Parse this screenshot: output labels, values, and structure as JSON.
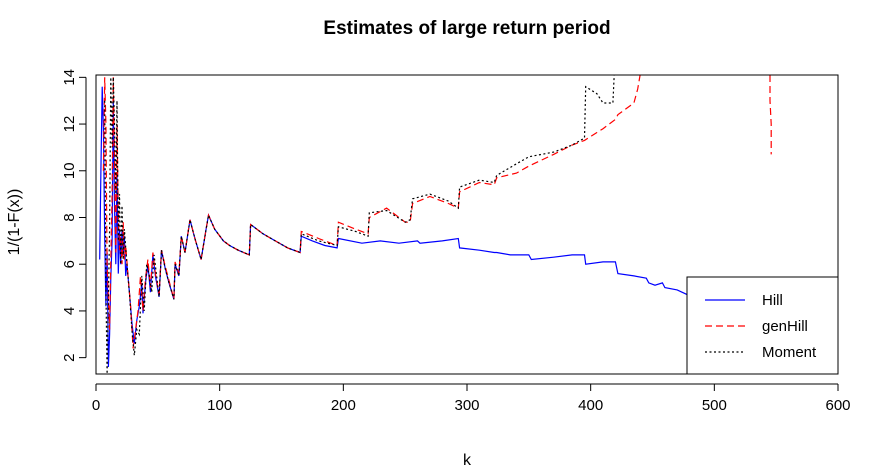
{
  "chart_data": {
    "type": "line",
    "title": "Estimates of large return period",
    "xlabel": "k",
    "ylabel": "1/(1-F(x))",
    "xlim": [
      0,
      600
    ],
    "ylim": [
      1.3,
      14.1
    ],
    "xticks": [
      {
        "value": 0,
        "label": "0"
      },
      {
        "value": 100,
        "label": "100"
      },
      {
        "value": 200,
        "label": "200"
      },
      {
        "value": 300,
        "label": "300"
      },
      {
        "value": 400,
        "label": "400"
      },
      {
        "value": 500,
        "label": "500"
      },
      {
        "value": 600,
        "label": "600"
      }
    ],
    "yticks": [
      {
        "value": 2,
        "label": "2"
      },
      {
        "value": 4,
        "label": "4"
      },
      {
        "value": 6,
        "label": "6"
      },
      {
        "value": 8,
        "label": "8"
      },
      {
        "value": 10,
        "label": "10"
      },
      {
        "value": 12,
        "label": "12"
      },
      {
        "value": 14,
        "label": "14"
      }
    ],
    "grid": false,
    "legend_position": "bottom-right",
    "series": [
      {
        "name": "Hill",
        "color": "#0000ff",
        "dash": "solid",
        "points": [
          [
            3,
            6.2
          ],
          [
            4,
            10
          ],
          [
            5,
            13.6
          ],
          [
            6,
            11.8
          ],
          [
            7,
            7.2
          ],
          [
            8,
            4.2
          ],
          [
            9,
            6.5
          ],
          [
            10,
            1.6
          ],
          [
            11,
            3
          ],
          [
            12,
            5.4
          ],
          [
            13,
            7
          ],
          [
            14,
            13
          ],
          [
            15,
            8.5
          ],
          [
            16,
            6
          ],
          [
            17,
            9.8
          ],
          [
            18,
            5.6
          ],
          [
            19,
            7.5
          ],
          [
            20,
            6
          ],
          [
            21,
            7.4
          ],
          [
            22,
            6.4
          ],
          [
            23,
            7.2
          ],
          [
            24,
            5.5
          ],
          [
            25,
            6
          ],
          [
            27,
            4.8
          ],
          [
            29,
            3.5
          ],
          [
            31,
            2.6
          ],
          [
            33,
            3.6
          ],
          [
            35,
            4.2
          ],
          [
            37,
            5.2
          ],
          [
            38,
            3.9
          ],
          [
            40,
            5.2
          ],
          [
            42,
            6
          ],
          [
            44,
            4.8
          ],
          [
            46,
            6.4
          ],
          [
            48,
            5.5
          ],
          [
            51,
            4.6
          ],
          [
            53,
            6.6
          ],
          [
            56,
            5.8
          ],
          [
            59,
            5.2
          ],
          [
            63,
            4.5
          ],
          [
            64,
            6
          ],
          [
            67,
            5.5
          ],
          [
            69,
            7.2
          ],
          [
            72,
            6.5
          ],
          [
            76,
            7.9
          ],
          [
            80,
            7.1
          ],
          [
            85,
            6.2
          ],
          [
            89,
            7.5
          ],
          [
            91,
            8.1
          ],
          [
            96,
            7.5
          ],
          [
            103,
            7
          ],
          [
            108,
            6.8
          ],
          [
            115,
            6.6
          ],
          [
            124,
            6.4
          ],
          [
            125,
            7.7
          ],
          [
            135,
            7.3
          ],
          [
            145,
            7
          ],
          [
            155,
            6.7
          ],
          [
            165,
            6.5
          ],
          [
            166,
            7.2
          ],
          [
            175,
            7
          ],
          [
            185,
            6.8
          ],
          [
            195,
            6.7
          ],
          [
            196,
            7.1
          ],
          [
            215,
            6.9
          ],
          [
            230,
            7
          ],
          [
            245,
            6.9
          ],
          [
            260,
            7
          ],
          [
            262,
            6.9
          ],
          [
            280,
            7
          ],
          [
            293,
            7.1
          ],
          [
            294,
            6.7
          ],
          [
            310,
            6.6
          ],
          [
            322,
            6.5
          ],
          [
            324,
            6.5
          ],
          [
            335,
            6.4
          ],
          [
            350,
            6.4
          ],
          [
            352,
            6.2
          ],
          [
            370,
            6.3
          ],
          [
            385,
            6.4
          ],
          [
            395,
            6.4
          ],
          [
            396,
            6
          ],
          [
            410,
            6.1
          ],
          [
            420,
            6.1
          ],
          [
            422,
            5.6
          ],
          [
            435,
            5.5
          ],
          [
            445,
            5.4
          ],
          [
            447,
            5.2
          ],
          [
            452,
            5.1
          ],
          [
            458,
            5.2
          ],
          [
            460,
            5
          ],
          [
            470,
            4.9
          ],
          [
            478,
            4.7
          ],
          [
            485,
            4.8
          ],
          [
            490,
            4.7
          ],
          [
            500,
            4.7
          ]
        ]
      },
      {
        "name": "genHill",
        "color": "#ff0000",
        "dash": "dashed",
        "points": [
          [
            6,
            10
          ],
          [
            7,
            14
          ],
          [
            8,
            12
          ],
          [
            9,
            6
          ],
          [
            10,
            4.5
          ],
          [
            11,
            3.2
          ],
          [
            12,
            6.2
          ],
          [
            13,
            9
          ],
          [
            14,
            14
          ],
          [
            15,
            10.5
          ],
          [
            16,
            6.5
          ],
          [
            17,
            12
          ],
          [
            18,
            8
          ],
          [
            19,
            6.6
          ],
          [
            20,
            7.2
          ],
          [
            21,
            6
          ],
          [
            22,
            7.8
          ],
          [
            23,
            6.2
          ],
          [
            24,
            6.8
          ],
          [
            26,
            5.4
          ],
          [
            28,
            4.2
          ],
          [
            30,
            2.4
          ],
          [
            32,
            3.2
          ],
          [
            34,
            4
          ],
          [
            36,
            5.5
          ],
          [
            38,
            4
          ],
          [
            40,
            5.4
          ],
          [
            42,
            6.2
          ],
          [
            44,
            5
          ],
          [
            46,
            6.5
          ],
          [
            48,
            5.6
          ],
          [
            51,
            4.7
          ],
          [
            53,
            6.6
          ],
          [
            56,
            5.9
          ],
          [
            59,
            5.3
          ],
          [
            63,
            4.5
          ],
          [
            64,
            6.1
          ],
          [
            67,
            5.6
          ],
          [
            69,
            7.2
          ],
          [
            72,
            6.5
          ],
          [
            76,
            7.9
          ],
          [
            80,
            7.1
          ],
          [
            85,
            6.2
          ],
          [
            89,
            7.5
          ],
          [
            91,
            8.1
          ],
          [
            96,
            7.5
          ],
          [
            103,
            7
          ],
          [
            108,
            6.8
          ],
          [
            115,
            6.6
          ],
          [
            124,
            6.4
          ],
          [
            125,
            7.7
          ],
          [
            135,
            7.3
          ],
          [
            145,
            7
          ],
          [
            155,
            6.7
          ],
          [
            165,
            6.5
          ],
          [
            166,
            7.4
          ],
          [
            180,
            7.1
          ],
          [
            195,
            6.8
          ],
          [
            196,
            7.8
          ],
          [
            210,
            7.5
          ],
          [
            220,
            7.3
          ],
          [
            221,
            8
          ],
          [
            235,
            8.4
          ],
          [
            250,
            7.8
          ],
          [
            254,
            7.8
          ],
          [
            256,
            8.6
          ],
          [
            270,
            8.9
          ],
          [
            285,
            8.6
          ],
          [
            293,
            8.4
          ],
          [
            294,
            9.1
          ],
          [
            310,
            9.5
          ],
          [
            322,
            9.4
          ],
          [
            324,
            9.7
          ],
          [
            340,
            9.9
          ],
          [
            350,
            10.2
          ],
          [
            370,
            10.7
          ],
          [
            385,
            11.1
          ],
          [
            395,
            11.3
          ],
          [
            410,
            11.8
          ],
          [
            420,
            12.2
          ],
          [
            422,
            12.4
          ],
          [
            435,
            12.9
          ],
          [
            438,
            13.5
          ],
          [
            440,
            14.1
          ]
        ],
        "extra_segments": [
          [
            [
              545,
              14.1
            ],
            [
              545,
              13
            ],
            [
              546,
              12
            ],
            [
              546,
              10.7
            ]
          ]
        ]
      },
      {
        "name": "Moment",
        "color": "#000000",
        "dash": "dotted",
        "points": [
          [
            7,
            13
          ],
          [
            8,
            5
          ],
          [
            9,
            1.3
          ],
          [
            10,
            4.5
          ],
          [
            11,
            7.5
          ],
          [
            12,
            14
          ],
          [
            13,
            11
          ],
          [
            14,
            14
          ],
          [
            15,
            12
          ],
          [
            16,
            9
          ],
          [
            17,
            13
          ],
          [
            18,
            7
          ],
          [
            19,
            9
          ],
          [
            20,
            6
          ],
          [
            21,
            8.5
          ],
          [
            22,
            6.2
          ],
          [
            23,
            7.5
          ],
          [
            25,
            6
          ],
          [
            27,
            4.8
          ],
          [
            29,
            3.2
          ],
          [
            31,
            2.1
          ],
          [
            33,
            3.2
          ],
          [
            35,
            3
          ],
          [
            37,
            5.5
          ],
          [
            39,
            4
          ],
          [
            41,
            6
          ],
          [
            43,
            5.5
          ],
          [
            45,
            4.8
          ],
          [
            47,
            6.4
          ],
          [
            49,
            5.5
          ],
          [
            51,
            4.6
          ],
          [
            53,
            6.6
          ],
          [
            56,
            5.8
          ],
          [
            59,
            5.2
          ],
          [
            63,
            4.5
          ],
          [
            64,
            6
          ],
          [
            67,
            5.5
          ],
          [
            69,
            7.2
          ],
          [
            72,
            6.5
          ],
          [
            76,
            7.9
          ],
          [
            80,
            7.1
          ],
          [
            85,
            6.2
          ],
          [
            89,
            7.5
          ],
          [
            91,
            8.1
          ],
          [
            96,
            7.5
          ],
          [
            103,
            7
          ],
          [
            108,
            6.8
          ],
          [
            115,
            6.6
          ],
          [
            124,
            6.4
          ],
          [
            125,
            7.7
          ],
          [
            135,
            7.3
          ],
          [
            145,
            7
          ],
          [
            155,
            6.7
          ],
          [
            165,
            6.5
          ],
          [
            166,
            7.3
          ],
          [
            180,
            7
          ],
          [
            195,
            6.8
          ],
          [
            196,
            7.6
          ],
          [
            210,
            7.4
          ],
          [
            220,
            7.2
          ],
          [
            221,
            8.2
          ],
          [
            235,
            8.3
          ],
          [
            250,
            7.8
          ],
          [
            254,
            7.9
          ],
          [
            256,
            8.8
          ],
          [
            270,
            9
          ],
          [
            285,
            8.7
          ],
          [
            293,
            8.4
          ],
          [
            294,
            9.3
          ],
          [
            310,
            9.6
          ],
          [
            322,
            9.5
          ],
          [
            324,
            9.8
          ],
          [
            340,
            10.3
          ],
          [
            350,
            10.6
          ],
          [
            370,
            10.8
          ],
          [
            385,
            11.1
          ],
          [
            395,
            11.4
          ],
          [
            396,
            13.6
          ],
          [
            405,
            13.3
          ],
          [
            410,
            12.9
          ],
          [
            418,
            12.9
          ],
          [
            419,
            14.1
          ]
        ]
      }
    ]
  }
}
